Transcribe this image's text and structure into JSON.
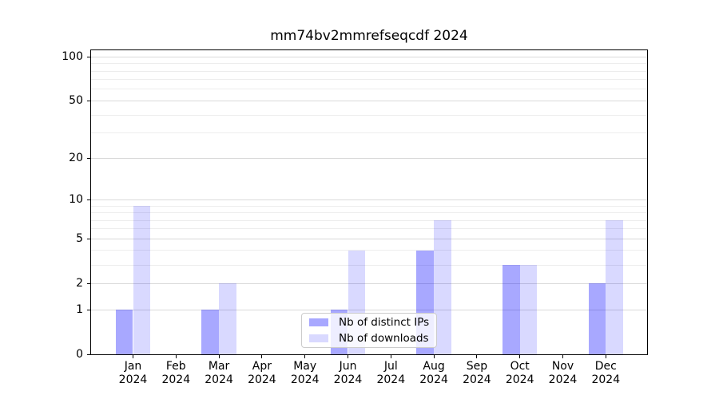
{
  "chart_data": {
    "type": "bar",
    "title": "mm74bv2mmrefseqcdf 2024",
    "categories": [
      "Jan",
      "Feb",
      "Mar",
      "Apr",
      "May",
      "Jun",
      "Jul",
      "Aug",
      "Sep",
      "Oct",
      "Nov",
      "Dec"
    ],
    "x_year_label": "2024",
    "series": [
      {
        "name": "Nb of distinct IPs",
        "color": "rgba(0,0,255,0.34)",
        "values": [
          1,
          0,
          1,
          0,
          0,
          1,
          0,
          4,
          0,
          3,
          0,
          2
        ]
      },
      {
        "name": "Nb of downloads",
        "color": "rgba(0,0,255,0.15)",
        "values": [
          9,
          0,
          2,
          0,
          0,
          4,
          0,
          7,
          0,
          3,
          0,
          7
        ]
      }
    ],
    "yscale": "log1p",
    "y_ticks_major": [
      0,
      1,
      2,
      5,
      10,
      20,
      50,
      100
    ],
    "y_ticks_minor": [
      3,
      4,
      6,
      7,
      8,
      9,
      30,
      40,
      60,
      70,
      80,
      90
    ],
    "ylim": [
      0,
      112
    ],
    "grid": "horizontal",
    "legend_position": "lower center"
  },
  "colors": {
    "grid_major": "#d9d9d9",
    "grid_minor": "#ededed",
    "axis": "#000000",
    "background": "#ffffff"
  }
}
